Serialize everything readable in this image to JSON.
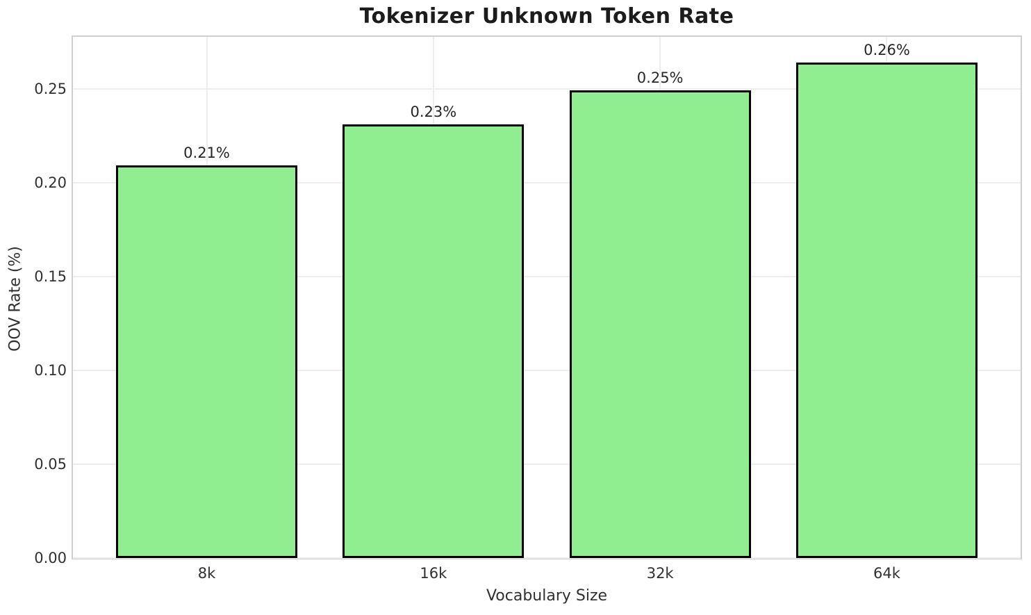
{
  "chart_data": {
    "type": "bar",
    "title": "Tokenizer Unknown Token Rate",
    "xlabel": "Vocabulary Size",
    "ylabel": "OOV Rate (%)",
    "categories": [
      "8k",
      "16k",
      "32k",
      "64k"
    ],
    "values": [
      0.209,
      0.231,
      0.249,
      0.264
    ],
    "bar_labels": [
      "0.21%",
      "0.23%",
      "0.25%",
      "0.26%"
    ],
    "ylim": [
      0,
      0.2776
    ],
    "ytick_values": [
      0.0,
      0.05,
      0.1,
      0.15,
      0.2,
      0.25
    ],
    "ytick_labels": [
      "0.00",
      "0.05",
      "0.10",
      "0.15",
      "0.20",
      "0.25"
    ],
    "grid": true,
    "legend": null,
    "colors": {
      "bar_fill": "#90EE90",
      "bar_edge": "#000000",
      "grid": "#ededed",
      "spine": "#cfcfcf",
      "title_text": "#1c1c1c",
      "tick_text": "#303030",
      "value_label_text": "#262626",
      "background": "#ffffff"
    }
  }
}
